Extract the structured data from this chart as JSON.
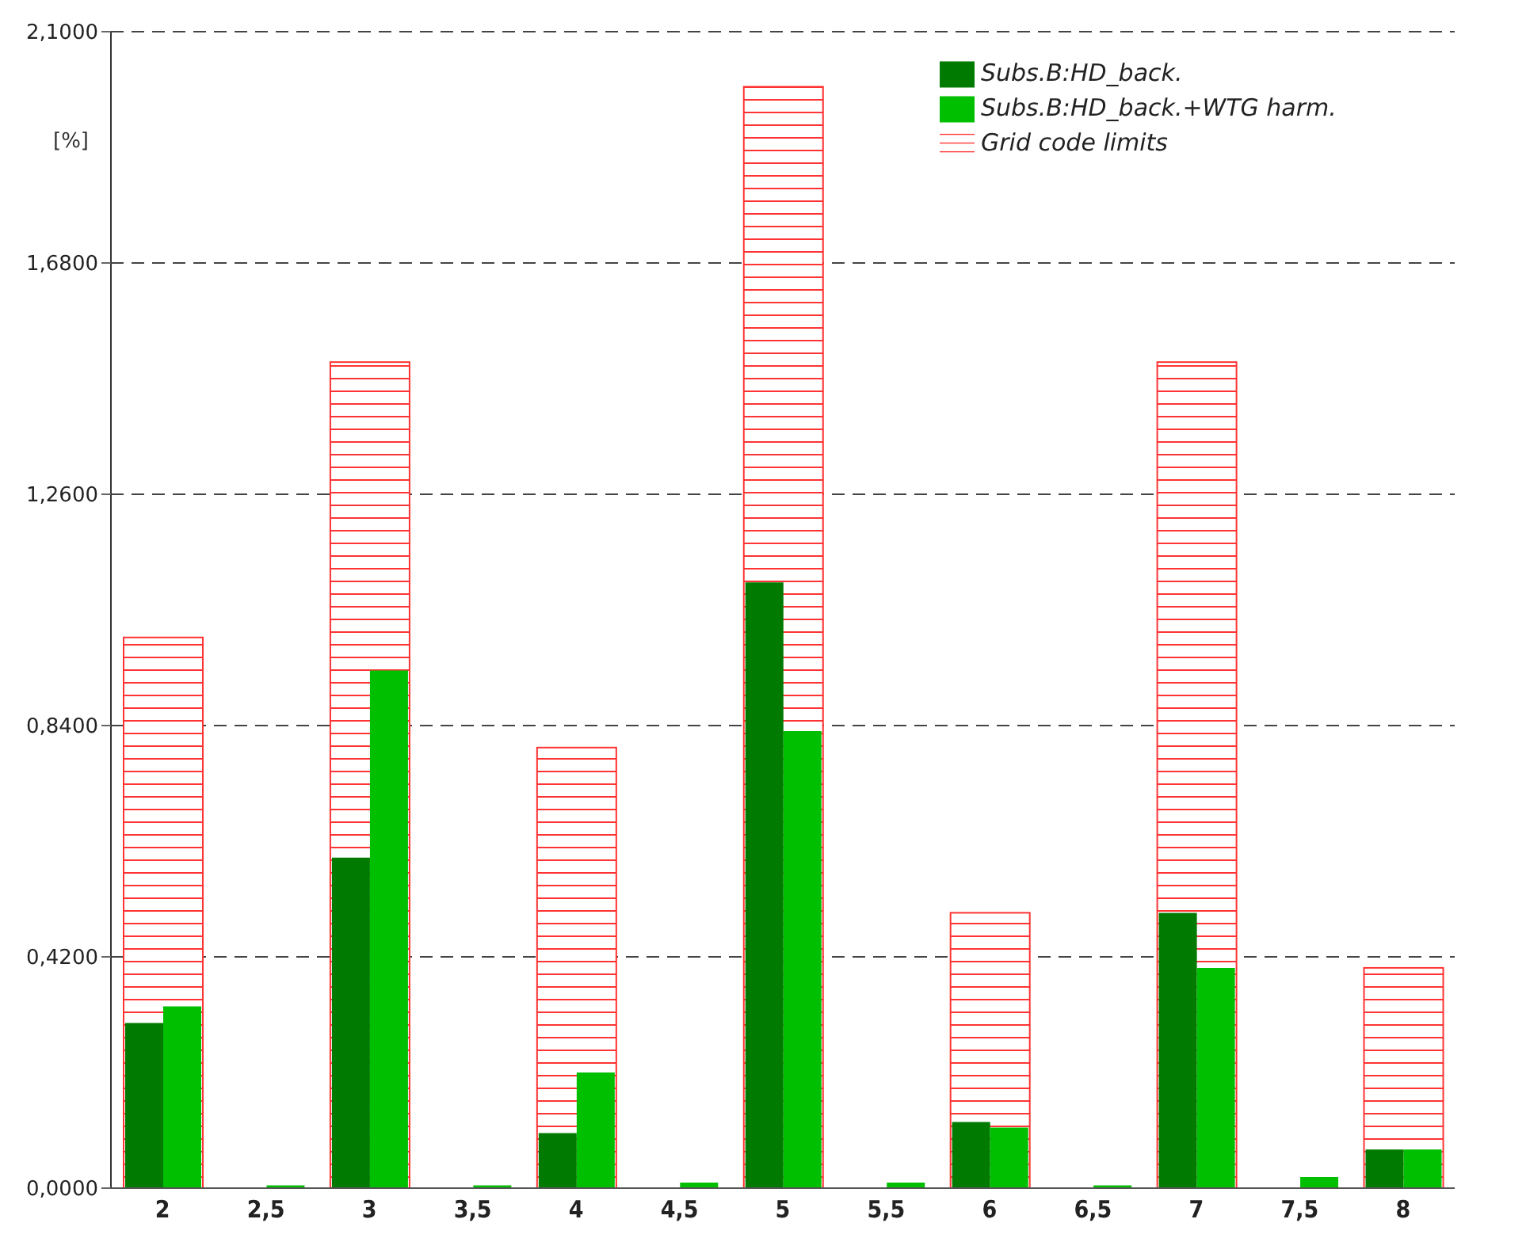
{
  "chart_data": {
    "type": "bar",
    "ylabel": "[%]",
    "categories": [
      "2",
      "2,5",
      "3",
      "3,5",
      "4",
      "4,5",
      "5",
      "5,5",
      "6",
      "6,5",
      "7",
      "7,5",
      "8"
    ],
    "series": [
      {
        "name": "Subs.B:HD_back.",
        "color": "#007a00",
        "values": [
          0.3,
          0,
          0.6,
          0,
          0.1,
          0,
          1.1,
          0,
          0.12,
          0,
          0.5,
          0,
          0.07
        ]
      },
      {
        "name": "Subs.B:HD_back.+WTG harm.",
        "color": "#00bf00",
        "values": [
          0.33,
          0.005,
          0.94,
          0.005,
          0.21,
          0.01,
          0.83,
          0.01,
          0.11,
          0.005,
          0.4,
          0.02,
          0.07
        ]
      },
      {
        "name": "Grid code limits",
        "color": "#ff3333",
        "values": [
          1.0,
          null,
          1.5,
          null,
          0.8,
          null,
          2.0,
          null,
          0.5,
          null,
          1.5,
          null,
          0.4
        ]
      }
    ],
    "ylim": [
      0,
      2.1
    ],
    "yticks": [
      {
        "value": 0,
        "label": "0,0000"
      },
      {
        "value": 0.42,
        "label": "0,4200"
      },
      {
        "value": 0.84,
        "label": "0,8400"
      },
      {
        "value": 1.26,
        "label": "1,2600"
      },
      {
        "value": 1.68,
        "label": "1,6800"
      },
      {
        "value": 2.1,
        "label": "2,1000"
      }
    ],
    "grid": "y",
    "legend": "top right"
  }
}
